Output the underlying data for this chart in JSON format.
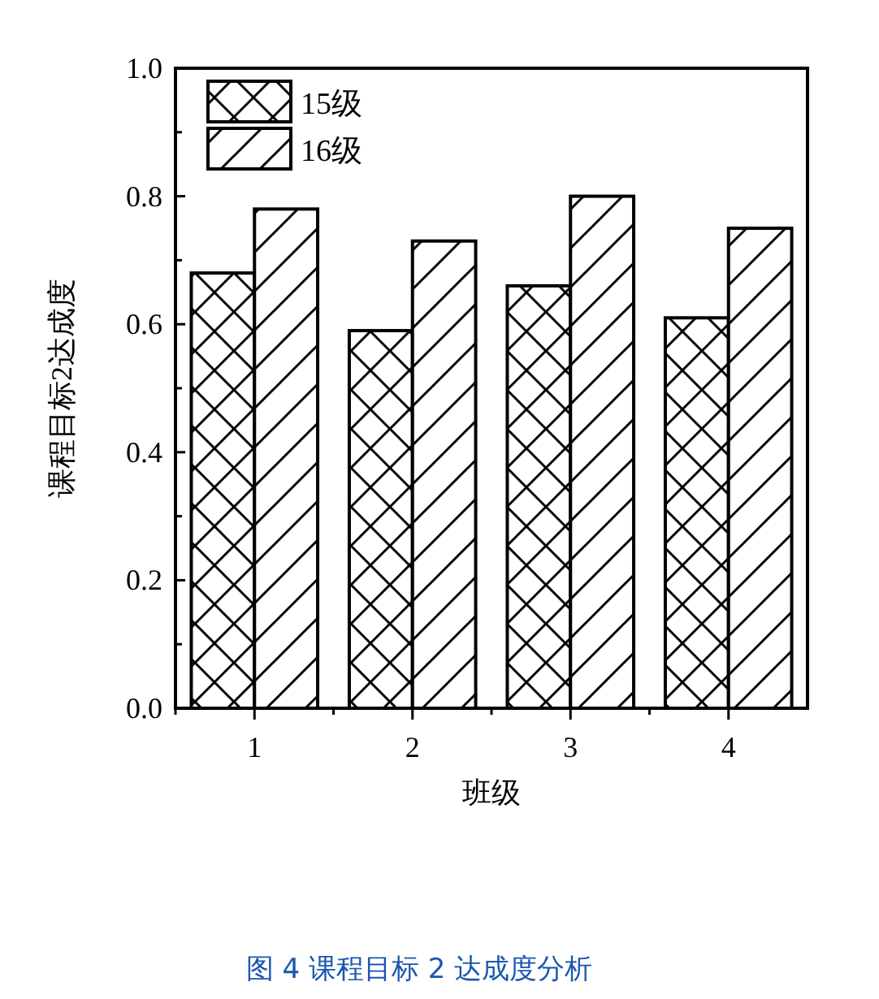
{
  "chart_data": {
    "type": "bar",
    "categories": [
      "1",
      "2",
      "3",
      "4"
    ],
    "series": [
      {
        "name": "15级",
        "color": "#000000",
        "values": [
          0.68,
          0.59,
          0.66,
          0.61
        ]
      },
      {
        "name": "16级",
        "color": "#000000",
        "values": [
          0.78,
          0.73,
          0.8,
          0.75
        ]
      }
    ],
    "xlabel": "班级",
    "ylabel": "课程目标2达成度",
    "ylim": [
      0,
      1.0
    ],
    "yticks": [
      {
        "value": 0,
        "label": "0.0"
      },
      {
        "value": 0.2,
        "label": "0.2"
      },
      {
        "value": 0.4,
        "label": "0.4"
      },
      {
        "value": 0.6,
        "label": "0.6"
      },
      {
        "value": 0.8,
        "label": "0.8"
      },
      {
        "value": 1.0,
        "label": "1.0"
      }
    ],
    "legend": "top left",
    "grid": false,
    "annotations": [
      "图 4 课程目标 2 达成度分析"
    ]
  }
}
